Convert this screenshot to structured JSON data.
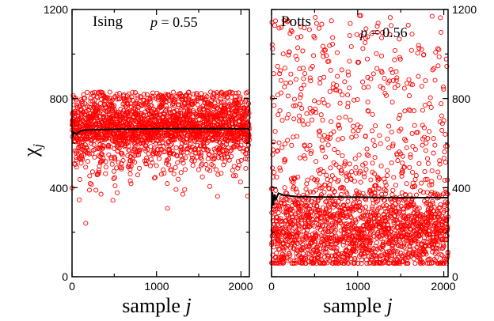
{
  "chart_data": {
    "type": "scatter",
    "ylabel": "χ",
    "ylabel_sub": "j",
    "ylim": [
      0,
      1200
    ],
    "y_ticks": [
      "0",
      "400",
      "800",
      "1200"
    ],
    "panels": [
      {
        "model": "Ising",
        "param_prefix": "p",
        "param_value": " = 0.55",
        "xlabel": "sample",
        "xlabel_var": "j",
        "xlim": [
          0,
          2100
        ],
        "x_ticks": [
          "0",
          "1000",
          "2000"
        ],
        "n_samples": 2100,
        "distribution": {
          "mode": 720,
          "spread": 90,
          "min": 240,
          "max": 860
        },
        "running_average": [
          [
            0,
            620
          ],
          [
            20,
            650
          ],
          [
            50,
            640
          ],
          [
            100,
            655
          ],
          [
            200,
            660
          ],
          [
            500,
            662
          ],
          [
            1000,
            665
          ],
          [
            1500,
            665
          ],
          [
            2100,
            665
          ]
        ],
        "point_color": "#ff0000",
        "line_color": "#000000"
      },
      {
        "model": "Potts",
        "param_prefix": "p",
        "param_value": " = 0.56",
        "xlabel": "sample",
        "xlabel_var": "j",
        "xlim": [
          0,
          2050
        ],
        "x_ticks": [
          "0",
          "1000",
          "2000"
        ],
        "n_samples": 2050,
        "distribution": {
          "mode": 220,
          "spread": 170,
          "min": 60,
          "max": 1175
        },
        "running_average": [
          [
            0,
            300
          ],
          [
            10,
            380
          ],
          [
            20,
            320
          ],
          [
            35,
            370
          ],
          [
            50,
            345
          ],
          [
            80,
            375
          ],
          [
            150,
            365
          ],
          [
            300,
            360
          ],
          [
            600,
            358
          ],
          [
            1000,
            357
          ],
          [
            1500,
            355
          ],
          [
            2050,
            355
          ]
        ],
        "point_color": "#ff0000",
        "line_color": "#000000"
      }
    ]
  }
}
